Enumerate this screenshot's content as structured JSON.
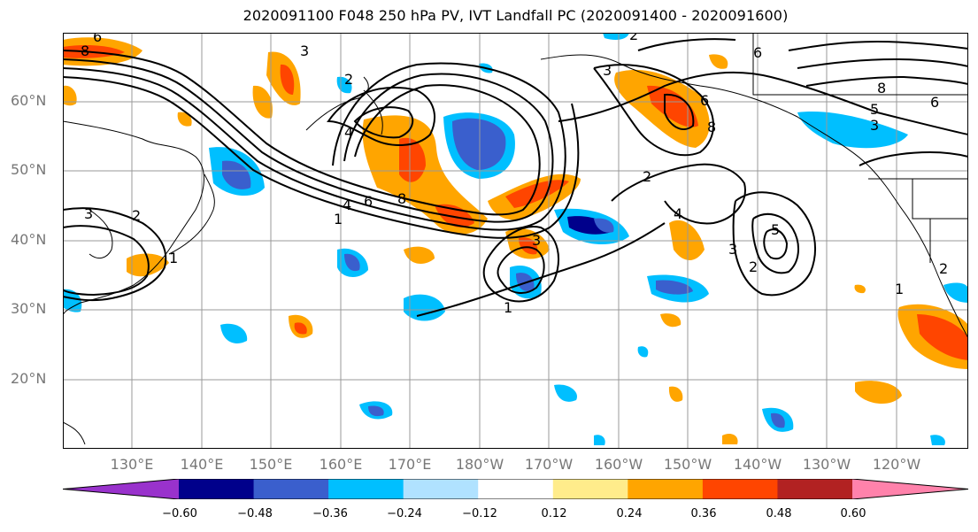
{
  "title": "2020091100 F048 250 hPa PV, IVT Landfall PC (2020091400 - 2020091600)",
  "lat_labels": [
    "60°N",
    "50°N",
    "40°N",
    "30°N",
    "20°N"
  ],
  "lon_labels": [
    "130°E",
    "140°E",
    "150°E",
    "160°E",
    "170°E",
    "180°W",
    "170°W",
    "160°W",
    "150°W",
    "140°W",
    "130°W",
    "120°W"
  ],
  "contour_labels": [
    "6",
    "8",
    "3",
    "2",
    "4",
    "6",
    "8",
    "2",
    "3",
    "6",
    "8",
    "5",
    "6",
    "3",
    "6",
    "8",
    "1",
    "4",
    "2",
    "3",
    "2",
    "1",
    "3",
    "4",
    "5",
    "2",
    "1",
    "3",
    "1",
    "2"
  ],
  "colorbar": {
    "ticks": [
      "−0.60",
      "−0.48",
      "−0.36",
      "−0.24",
      "−0.12",
      "0.12",
      "0.24",
      "0.36",
      "0.48",
      "0.60"
    ],
    "colors": [
      "#9932cc",
      "#00008b",
      "#3a5fcd",
      "#00bfff",
      "#b0e2ff",
      "#ffffff",
      "#ffec8b",
      "#ffa500",
      "#ff4500",
      "#b22222",
      "#ff82ab"
    ]
  }
}
